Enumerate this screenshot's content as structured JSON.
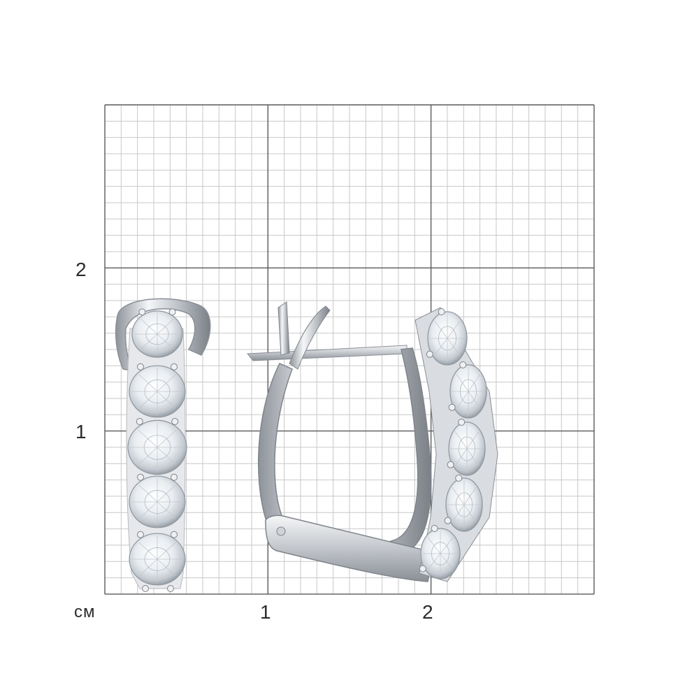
{
  "ruler": {
    "unit": "см",
    "x_ticks": [
      "1",
      "2"
    ],
    "y_ticks": [
      "2",
      "1"
    ]
  },
  "colors": {
    "grid_minor": "#c8c8c8",
    "grid_major": "#5a5a5a",
    "background": "#ffffff",
    "metal": "#dfe2e6",
    "stone": "#eef1f4"
  }
}
